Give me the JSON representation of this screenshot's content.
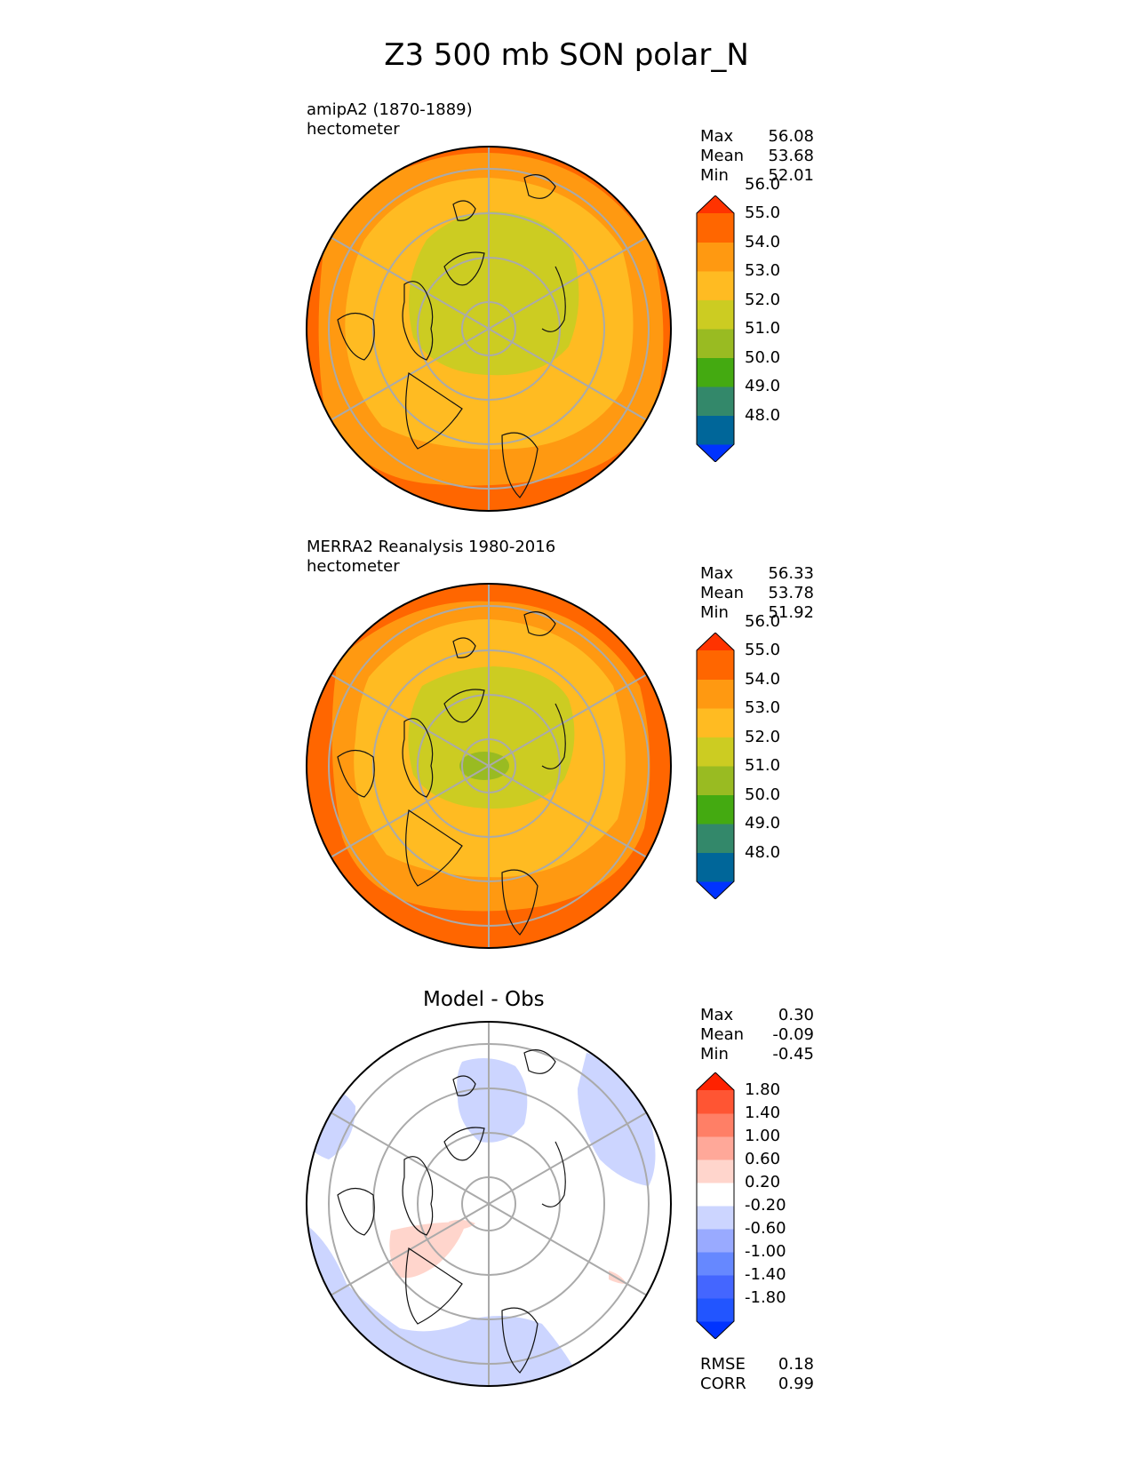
{
  "figure_title": "Z3 500 mb SON polar_N",
  "panels": [
    {
      "label_line1": "amipA2 (1870-1889)",
      "label_line2": "hectometer",
      "stats": [
        {
          "name": "Max",
          "value": "56.08"
        },
        {
          "name": "Mean",
          "value": "53.68"
        },
        {
          "name": "Min",
          "value": "52.01"
        }
      ],
      "colorbar": {
        "colors": [
          "#0033ff",
          "#006699",
          "#33886a",
          "#44aa11",
          "#99bb22",
          "#cccc22",
          "#ffbb22",
          "#ff9911",
          "#ff6600",
          "#ff3300"
        ],
        "labels": [
          "48.0",
          "49.0",
          "50.0",
          "51.0",
          "52.0",
          "53.0",
          "54.0",
          "55.0",
          "56.0"
        ]
      }
    },
    {
      "label_line1": "MERRA2 Reanalysis 1980-2016",
      "label_line2": "hectometer",
      "stats": [
        {
          "name": "Max",
          "value": "56.33"
        },
        {
          "name": "Mean",
          "value": "53.78"
        },
        {
          "name": "Min",
          "value": "51.92"
        }
      ],
      "colorbar": {
        "colors": [
          "#0033ff",
          "#006699",
          "#33886a",
          "#44aa11",
          "#99bb22",
          "#cccc22",
          "#ffbb22",
          "#ff9911",
          "#ff6600",
          "#ff3300"
        ],
        "labels": [
          "48.0",
          "49.0",
          "50.0",
          "51.0",
          "52.0",
          "53.0",
          "54.0",
          "55.0",
          "56.0"
        ]
      }
    },
    {
      "title": "Model - Obs",
      "stats": [
        {
          "name": "Max",
          "value": "0.30"
        },
        {
          "name": "Mean",
          "value": "-0.09"
        },
        {
          "name": "Min",
          "value": "-0.45"
        }
      ],
      "extra_stats": [
        {
          "name": "RMSE",
          "value": "0.18"
        },
        {
          "name": "CORR",
          "value": "0.99"
        }
      ],
      "colorbar": {
        "colors": [
          "#0033ff",
          "#2255ff",
          "#4466ff",
          "#6688ff",
          "#99aaff",
          "#ccd5ff",
          "#ffffff",
          "#ffd5cc",
          "#ffa899",
          "#ff7f66",
          "#ff5533",
          "#ff2200"
        ],
        "labels": [
          "-1.80",
          "-1.40",
          "-1.00",
          "-0.60",
          "-0.20",
          "0.20",
          "0.60",
          "1.00",
          "1.40",
          "1.80"
        ]
      }
    }
  ]
}
